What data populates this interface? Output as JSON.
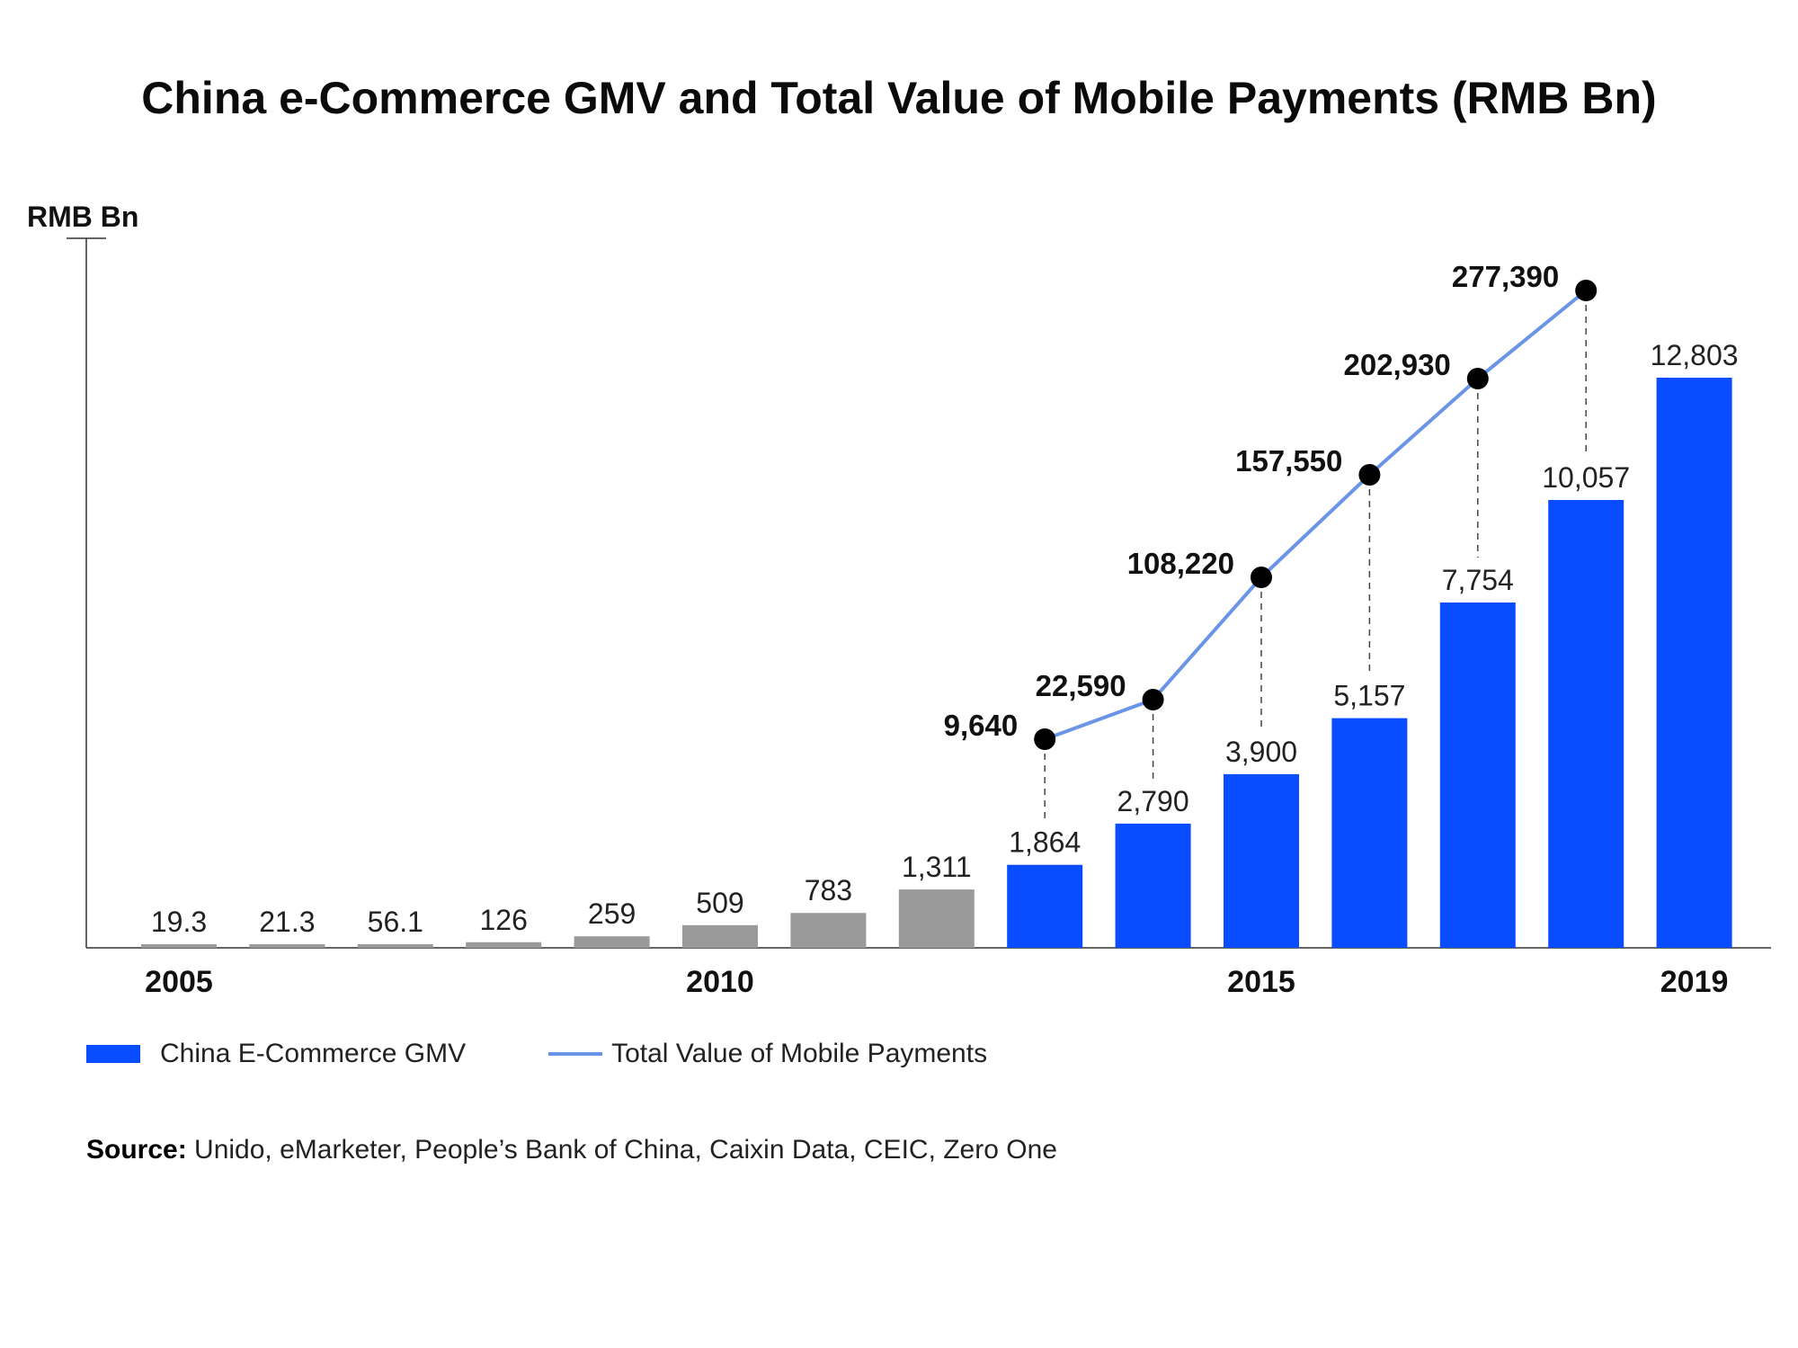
{
  "chart_data": {
    "type": "bar+line",
    "title": "China e-Commerce GMV and Total Value of Mobile Payments (RMB Bn)",
    "ylabel": "RMB Bn",
    "categories": [
      "2005",
      "2006",
      "2007",
      "2008",
      "2009",
      "2010",
      "2011",
      "2012",
      "2013",
      "2014",
      "2015",
      "2016",
      "2017",
      "2018",
      "2019"
    ],
    "x_tick_labels": [
      {
        "index": 0,
        "label": "2005"
      },
      {
        "index": 5,
        "label": "2010"
      },
      {
        "index": 10,
        "label": "2015"
      },
      {
        "index": 14,
        "label": "2019"
      }
    ],
    "bar_series": {
      "name": "China E-Commerce GMV",
      "values": [
        19.3,
        21.3,
        56.1,
        126,
        259,
        509,
        783,
        1311,
        1864,
        2790,
        3900,
        5157,
        7754,
        10057,
        12803
      ],
      "labels": [
        "19.3",
        "21.3",
        "56.1",
        "126",
        "259",
        "509",
        "783",
        "1,311",
        "1,864",
        "2,790",
        "3,900",
        "5,157",
        "7,754",
        "10,057",
        "12,803"
      ],
      "colors_by_index": [
        "#9a9a9a",
        "#9a9a9a",
        "#9a9a9a",
        "#9a9a9a",
        "#9a9a9a",
        "#9a9a9a",
        "#9a9a9a",
        "#9a9a9a",
        "#0a4cff",
        "#0a4cff",
        "#0a4cff",
        "#0a4cff",
        "#0a4cff",
        "#0a4cff",
        "#0a4cff"
      ]
    },
    "line_series": {
      "name": "Total Value of Mobile Payments",
      "x_indices": [
        8,
        9,
        10,
        11,
        12,
        13
      ],
      "values": [
        9640,
        22590,
        108220,
        157550,
        202930,
        277390
      ],
      "labels": [
        "9,640",
        "22,590",
        "108,220",
        "157,550",
        "202,930",
        "277,390"
      ],
      "color": "#6a95e6",
      "marker_color": "#000000"
    },
    "grid": false,
    "legend_position": "bottom-left"
  },
  "legend": {
    "bar_label": "China E-Commerce GMV",
    "line_label": "Total Value of Mobile Payments"
  },
  "source": {
    "prefix": "Source:",
    "text": "Unido, eMarketer, People’s Bank of China, Caixin Data, CEIC, Zero One"
  }
}
